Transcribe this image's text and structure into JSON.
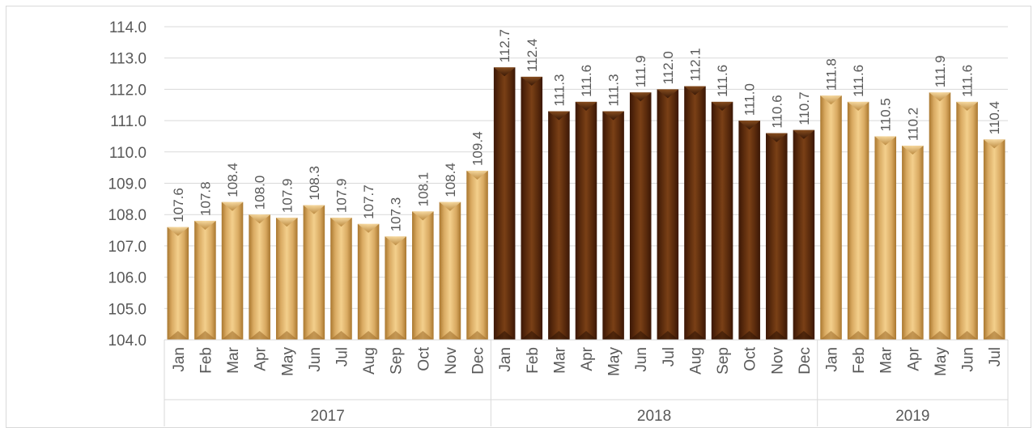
{
  "chart_data": {
    "type": "bar",
    "ylim": [
      104.0,
      114.0
    ],
    "ytick_step": 1.0,
    "grid": true,
    "yticks": [
      "104.0",
      "105.0",
      "106.0",
      "107.0",
      "108.0",
      "109.0",
      "110.0",
      "111.0",
      "112.0",
      "113.0",
      "114.0"
    ],
    "groups": [
      {
        "year": "2017",
        "months": [
          "Jan",
          "Feb",
          "Mar",
          "Apr",
          "May",
          "Jun",
          "Jul",
          "Aug",
          "Sep",
          "Oct",
          "Nov",
          "Dec"
        ],
        "values": [
          107.6,
          107.8,
          108.4,
          108.0,
          107.9,
          108.3,
          107.9,
          107.7,
          107.3,
          108.1,
          108.4,
          109.4
        ],
        "labels": [
          "107.6",
          "107.8",
          "108.4",
          "108.0",
          "107.9",
          "108.3",
          "107.9",
          "107.7",
          "107.3",
          "108.1",
          "108.4",
          "109.4"
        ],
        "color": "#d8a860"
      },
      {
        "year": "2018",
        "months": [
          "Jan",
          "Feb",
          "Mar",
          "Apr",
          "May",
          "Jun",
          "Jul",
          "Aug",
          "Sep",
          "Oct",
          "Nov",
          "Dec"
        ],
        "values": [
          112.7,
          112.4,
          111.3,
          111.6,
          111.3,
          111.9,
          112.0,
          112.1,
          111.6,
          111.0,
          110.6,
          110.7
        ],
        "labels": [
          "112.7",
          "112.4",
          "111.3",
          "111.6",
          "111.3",
          "111.9",
          "112.0",
          "112.1",
          "111.6",
          "111.0",
          "110.6",
          "110.7"
        ],
        "color": "#5a2a0c"
      },
      {
        "year": "2019",
        "months": [
          "Jan",
          "Feb",
          "Mar",
          "Apr",
          "May",
          "Jun",
          "Jul"
        ],
        "values": [
          111.8,
          111.6,
          110.5,
          110.2,
          111.9,
          111.6,
          110.4
        ],
        "labels": [
          "111.8",
          "111.6",
          "110.5",
          "110.2",
          "111.9",
          "111.6",
          "110.4"
        ],
        "color": "#d8a860"
      }
    ]
  }
}
